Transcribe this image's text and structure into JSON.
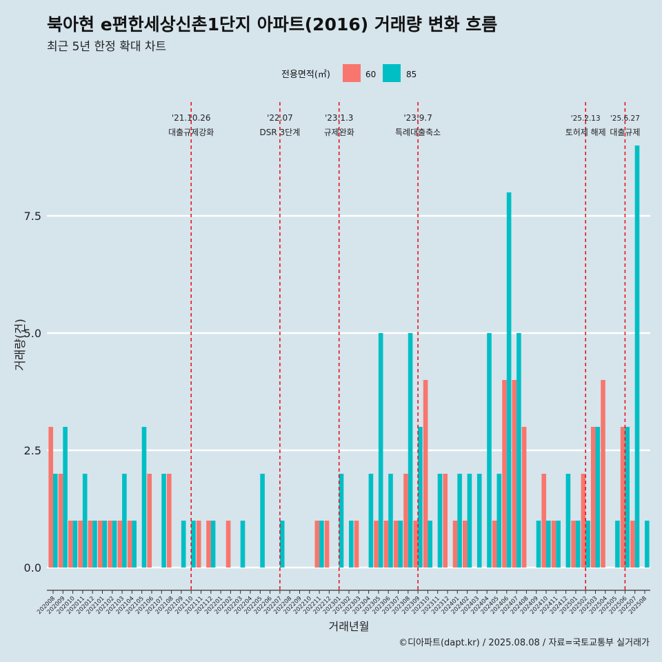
{
  "chart_data": {
    "type": "bar",
    "title": "북아현 e편한세상신촌1단지 아파트(2016) 거래량 변화 흐름",
    "subtitle": "최근 5년 한정 확대 차트",
    "xlabel": "거래년월",
    "ylabel": "거래량(건)",
    "caption": "©디아파트(dapt.kr) / 2025.08.08 / 자료=국토교통부 실거래가",
    "ylim": [
      -0.4,
      9.4
    ],
    "yticks": [
      "0.0",
      "2.5",
      "5.0",
      "7.5"
    ],
    "ytick_values": [
      0,
      2.5,
      5,
      7.5
    ],
    "legend_title": "전용면적(㎡)",
    "legend_position": "top",
    "colors": {
      "60": "#f8766d",
      "85": "#00bfc4",
      "vline": "#e8141d",
      "grid": "#ffffff"
    },
    "categories": [
      "202008",
      "202009",
      "202010",
      "202011",
      "202012",
      "202101",
      "202102",
      "202103",
      "202104",
      "202105",
      "202106",
      "202107",
      "202108",
      "202109",
      "202110",
      "202111",
      "202112",
      "202201",
      "202202",
      "202203",
      "202204",
      "202205",
      "202206",
      "202207",
      "202208",
      "202209",
      "202210",
      "202211",
      "202212",
      "202301",
      "202302",
      "202303",
      "202304",
      "202305",
      "202306",
      "202307",
      "202308",
      "202309",
      "202310",
      "202311",
      "202312",
      "202401",
      "202402",
      "202403",
      "202404",
      "202405",
      "202406",
      "202407",
      "202408",
      "202409",
      "202410",
      "202411",
      "202412",
      "202501",
      "202502",
      "202503",
      "202504",
      "202505",
      "202506",
      "202507",
      "202508"
    ],
    "series": [
      {
        "name": "60",
        "values": [
          3,
          2,
          1,
          1,
          1,
          1,
          1,
          1,
          1,
          0,
          2,
          0,
          2,
          0,
          0,
          1,
          1,
          0,
          1,
          0,
          0,
          0,
          0,
          0,
          0,
          0,
          0,
          1,
          1,
          0,
          0,
          1,
          0,
          1,
          1,
          1,
          2,
          1,
          4,
          0,
          2,
          1,
          1,
          0,
          0,
          1,
          4,
          4,
          3,
          0,
          2,
          1,
          0,
          1,
          2,
          3,
          4,
          0,
          3,
          1,
          0
        ]
      },
      {
        "name": "85",
        "values": [
          2,
          3,
          1,
          2,
          1,
          1,
          1,
          2,
          1,
          3,
          0,
          2,
          0,
          1,
          1,
          0,
          1,
          0,
          0,
          1,
          0,
          2,
          0,
          1,
          0,
          0,
          0,
          1,
          0,
          2,
          1,
          0,
          2,
          5,
          2,
          1,
          5,
          3,
          1,
          2,
          0,
          2,
          2,
          2,
          5,
          2,
          8,
          5,
          0,
          1,
          1,
          1,
          2,
          1,
          1,
          3,
          0,
          1,
          3,
          9,
          1
        ]
      }
    ],
    "events": [
      {
        "month": "202110",
        "date": "'21.10.26",
        "label": "대출규제강화"
      },
      {
        "month": "202207",
        "date": "'22.07",
        "label": "DSR 3단계"
      },
      {
        "month": "202301",
        "date": "'23.1.3",
        "label": "규제완화"
      },
      {
        "month": "202309",
        "date": "'23.9.7",
        "label": "특례대출축소"
      },
      {
        "month": "202502",
        "date": "'25.2.13",
        "label": "토허제 해제"
      },
      {
        "month": "202506",
        "date": "'25.6.27",
        "label": "대출규제"
      }
    ]
  }
}
